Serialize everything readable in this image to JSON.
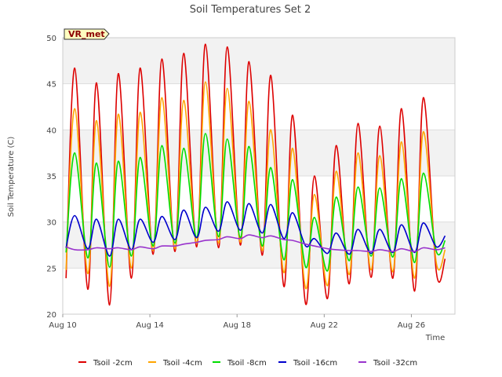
{
  "chart_data": {
    "type": "line",
    "title": "Soil Temperatures Set 2",
    "xlabel": "Time",
    "ylabel": "Soil Temperature (C)",
    "badge": "VR_met",
    "ylim": [
      20,
      50
    ],
    "xlim": [
      "Aug 10",
      "Aug 28"
    ],
    "x_ticks": [
      "Aug 10",
      "Aug 14",
      "Aug 18",
      "Aug 22",
      "Aug 26"
    ],
    "y_ticks": [
      20,
      25,
      30,
      35,
      40,
      45,
      50
    ],
    "grid": true,
    "legend_position": "bottom",
    "x_unit": "days since Aug 10",
    "x": [
      0.15,
      0.55,
      1.15,
      1.55,
      2.15,
      2.55,
      3.15,
      3.55,
      4.15,
      4.55,
      5.15,
      5.55,
      6.15,
      6.55,
      7.15,
      7.55,
      8.15,
      8.55,
      9.15,
      9.55,
      10.15,
      10.55,
      11.15,
      11.55,
      12.15,
      12.55,
      13.15,
      13.55,
      14.15,
      14.55,
      15.15,
      15.55,
      16.15,
      16.55,
      17.15,
      17.55
    ],
    "series": [
      {
        "name": "Tsoil -2cm",
        "color": "#dd0000",
        "values": [
          23.9,
          46.7,
          22.7,
          45.1,
          21.0,
          46.1,
          23.9,
          46.7,
          26.5,
          47.7,
          26.8,
          48.3,
          27.3,
          49.3,
          27.2,
          49.0,
          27.5,
          47.4,
          26.4,
          45.9,
          23.0,
          41.6,
          21.1,
          35.0,
          21.7,
          38.3,
          23.3,
          40.7,
          24.0,
          40.4,
          23.9,
          42.3,
          22.5,
          43.5,
          24.5,
          26.0
        ]
      },
      {
        "name": "Tsoil -4cm",
        "color": "#ffa500",
        "values": [
          24.8,
          42.3,
          24.4,
          41.0,
          23.0,
          41.7,
          25.0,
          41.9,
          26.9,
          43.5,
          27.1,
          43.2,
          27.7,
          45.2,
          27.7,
          44.5,
          27.8,
          43.1,
          26.9,
          40.0,
          24.5,
          38.0,
          22.8,
          33.0,
          23.1,
          35.5,
          24.3,
          37.5,
          24.8,
          37.2,
          24.6,
          38.7,
          23.9,
          39.8,
          25.5,
          27.0
        ]
      },
      {
        "name": "Tsoil -8cm",
        "color": "#00dd00",
        "values": [
          26.7,
          37.5,
          26.1,
          36.4,
          25.1,
          36.6,
          26.3,
          37.0,
          27.4,
          38.3,
          27.7,
          38.0,
          28.3,
          39.6,
          28.4,
          39.0,
          28.3,
          38.2,
          27.4,
          35.9,
          25.9,
          34.6,
          25.1,
          30.5,
          24.7,
          32.7,
          25.8,
          33.8,
          26.3,
          33.7,
          26.2,
          34.7,
          25.6,
          35.3,
          26.8,
          28.0
        ]
      },
      {
        "name": "Tsoil -16cm",
        "color": "#0000cc",
        "values": [
          27.2,
          30.7,
          27.1,
          30.3,
          26.3,
          30.3,
          27.0,
          30.3,
          27.8,
          30.6,
          28.1,
          31.3,
          28.3,
          31.6,
          29.0,
          32.2,
          29.1,
          32.0,
          28.8,
          31.9,
          28.2,
          31.0,
          27.4,
          28.2,
          26.6,
          28.8,
          26.5,
          29.2,
          26.6,
          29.2,
          26.7,
          29.7,
          26.7,
          29.9,
          27.3,
          28.5
        ]
      },
      {
        "name": "Tsoil -32cm",
        "color": "#9933cc",
        "values": [
          27.3,
          27.0,
          27.0,
          27.2,
          27.1,
          27.2,
          27.0,
          27.3,
          27.1,
          27.4,
          27.4,
          27.6,
          27.8,
          28.0,
          28.1,
          28.4,
          28.2,
          28.6,
          28.3,
          28.5,
          28.1,
          28.0,
          27.6,
          27.4,
          27.1,
          27.0,
          26.9,
          26.9,
          26.8,
          27.0,
          26.8,
          27.1,
          26.8,
          27.2,
          27.0,
          27.2
        ]
      }
    ]
  }
}
